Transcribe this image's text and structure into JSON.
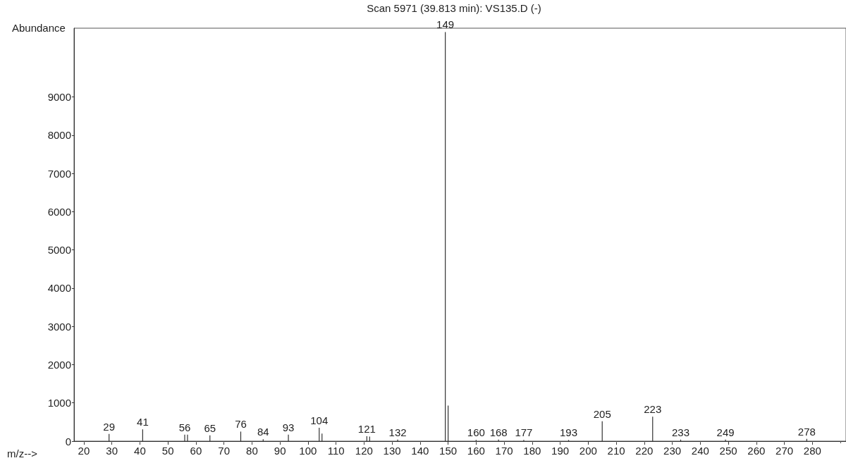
{
  "chart_data": {
    "type": "bar",
    "title": "Scan 5971 (39.813 min): VS135.D (-)",
    "xlabel": "m/z-->",
    "ylabel": "Abundance",
    "x": [
      29,
      41,
      56,
      57,
      65,
      76,
      84,
      93,
      104,
      105,
      121,
      122,
      132,
      149,
      150,
      160,
      168,
      177,
      193,
      205,
      223,
      233,
      249,
      278
    ],
    "values": [
      190,
      310,
      170,
      170,
      150,
      250,
      50,
      170,
      350,
      200,
      130,
      120,
      40,
      10700,
      930,
      30,
      40,
      30,
      30,
      520,
      640,
      40,
      40,
      60
    ],
    "color": "#333333",
    "xlim": [
      16.5,
      292
    ],
    "xticks": [
      20,
      30,
      40,
      50,
      60,
      70,
      80,
      90,
      100,
      110,
      120,
      130,
      140,
      150,
      160,
      170,
      180,
      190,
      200,
      210,
      220,
      230,
      240,
      250,
      260,
      270,
      280
    ],
    "ylim": [
      0,
      10800
    ],
    "yticks": [
      0,
      1000,
      2000,
      3000,
      4000,
      5000,
      6000,
      7000,
      8000,
      9000
    ],
    "grid": false,
    "annotations": [
      {
        "text": "29",
        "x": 29,
        "y": 190
      },
      {
        "text": "41",
        "x": 41,
        "y": 310
      },
      {
        "text": "56",
        "x": 56,
        "y": 170
      },
      {
        "text": "65",
        "x": 65,
        "y": 150
      },
      {
        "text": "76",
        "x": 76,
        "y": 250
      },
      {
        "text": "84",
        "x": 84,
        "y": 50
      },
      {
        "text": "93",
        "x": 93,
        "y": 170
      },
      {
        "text": "104",
        "x": 104,
        "y": 350
      },
      {
        "text": "121",
        "x": 121,
        "y": 130
      },
      {
        "text": "132",
        "x": 132,
        "y": 40
      },
      {
        "text": "149",
        "x": 149,
        "y": 10700
      },
      {
        "text": "160",
        "x": 160,
        "y": 30
      },
      {
        "text": "168",
        "x": 168,
        "y": 40
      },
      {
        "text": "177",
        "x": 177,
        "y": 30
      },
      {
        "text": "193",
        "x": 193,
        "y": 30
      },
      {
        "text": "205",
        "x": 205,
        "y": 520
      },
      {
        "text": "223",
        "x": 223,
        "y": 640
      },
      {
        "text": "233",
        "x": 233,
        "y": 40
      },
      {
        "text": "249",
        "x": 249,
        "y": 40
      },
      {
        "text": "278",
        "x": 278,
        "y": 60
      }
    ]
  }
}
